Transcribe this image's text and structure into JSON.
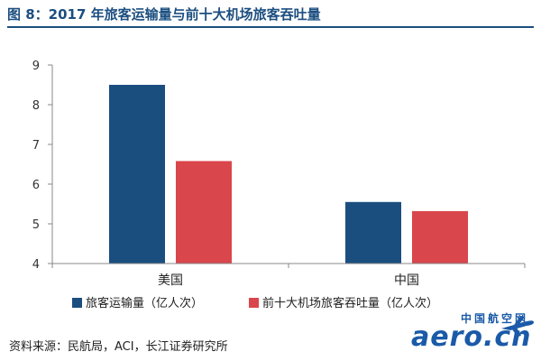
{
  "figure": {
    "title": "图 8：2017 年旅客运输量与前十大机场旅客吞吐量",
    "source": "资料来源：民航局，ACI，长江证券研究所"
  },
  "watermark": {
    "text_cn": "中国航空网",
    "text_en": "aero.cn",
    "icon": "airplane-icon"
  },
  "chart_data": {
    "type": "bar",
    "categories": [
      "美国",
      "中国"
    ],
    "series": [
      {
        "name": "旅客运输量（亿人次）",
        "values": [
          8.5,
          5.55
        ],
        "color": "#1a4e7f"
      },
      {
        "name": "前十大机场旅客吞吐量（亿人次）",
        "values": [
          6.58,
          5.32
        ],
        "color": "#d9464b"
      }
    ],
    "ylim": [
      4,
      9
    ],
    "yticks": [
      "4",
      "5",
      "6",
      "7",
      "8",
      "9"
    ],
    "grid": false,
    "legend_position": "bottom"
  }
}
